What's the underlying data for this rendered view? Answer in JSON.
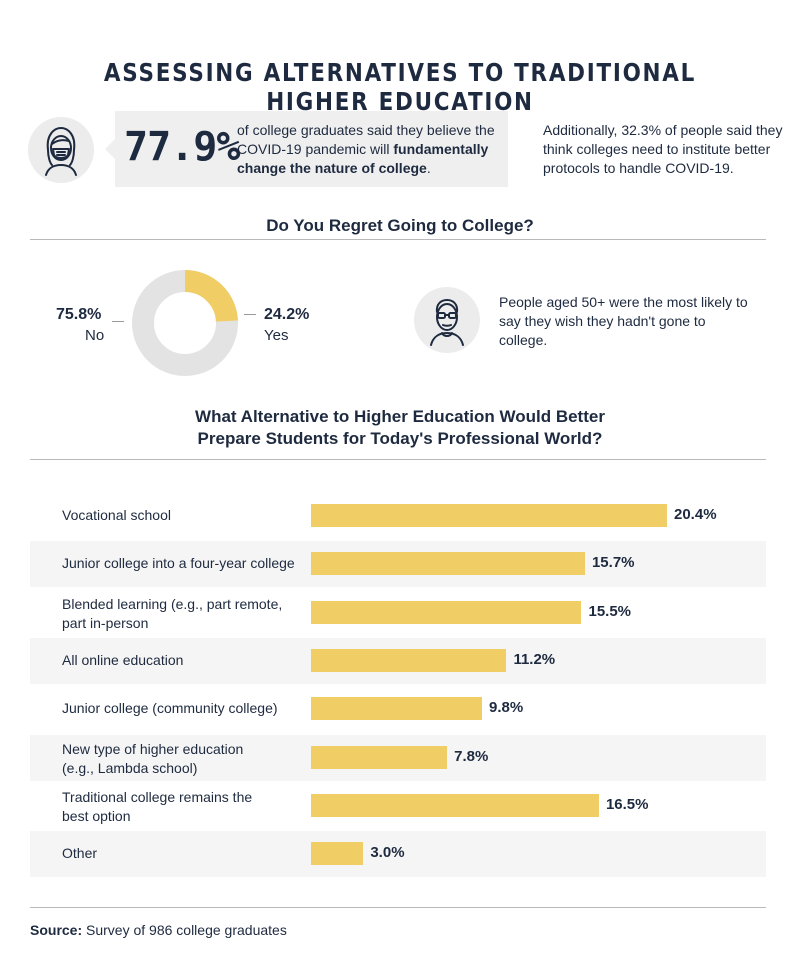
{
  "title": "ASSESSING ALTERNATIVES TO TRADITIONAL HIGHER EDUCATION",
  "callout": {
    "stat": "77.9%",
    "text_before": "of college graduates said they believe the COVID-19 pandemic will ",
    "text_bold": "fundamentally change the nature of college",
    "text_after": ".",
    "icon": "masked-woman-icon"
  },
  "side_note": "Additionally, 32.3% of people said they think colleges need to institute better protocols to handle COVID-19.",
  "regret": {
    "title": "Do You Regret Going to College?",
    "no_value": "75.8%",
    "no_label": "No",
    "yes_value": "24.2%",
    "yes_label": "Yes",
    "elder_note": "People aged 50+ were the most likely to say they wish they hadn't gone to college.",
    "icon": "older-man-glasses-icon"
  },
  "alternatives": {
    "title_line1": "What Alternative to Higher Education Would Better",
    "title_line2": "Prepare Students for Today's Professional World?"
  },
  "colors": {
    "navy": "#1e2a3f",
    "bar": "#f0cd65",
    "row_stripe": "#f5f5f5",
    "donut_rest": "#e3e3e3"
  },
  "chart_data": [
    {
      "type": "pie",
      "title": "Do You Regret Going to College?",
      "categories": [
        "No",
        "Yes"
      ],
      "values": [
        75.8,
        24.2
      ],
      "labels": [
        "75.8%",
        "24.2%"
      ],
      "colors": [
        "#e3e3e3",
        "#f0cd65"
      ]
    },
    {
      "type": "bar",
      "orientation": "horizontal",
      "title": "What Alternative to Higher Education Would Better Prepare Students for Today's Professional World?",
      "categories": [
        "Vocational school",
        "Junior college into a four-year college",
        "Blended learning (e.g., part remote, part in-person",
        "All online education",
        "Junior college (community college)",
        "New type of higher education (e.g., Lambda school)",
        "Traditional college remains the best option",
        "Other"
      ],
      "category_lines": [
        [
          "Vocational school"
        ],
        [
          "Junior college into a four-year college"
        ],
        [
          "Blended learning (e.g., part remote,",
          "part in-person"
        ],
        [
          "All online education"
        ],
        [
          "Junior college (community college)"
        ],
        [
          "New type of higher education",
          "(e.g., Lambda school)"
        ],
        [
          "Traditional college remains the",
          "best option"
        ],
        [
          "Other"
        ]
      ],
      "values": [
        20.4,
        15.7,
        15.5,
        11.2,
        9.8,
        7.8,
        16.5,
        3.0
      ],
      "labels": [
        "20.4%",
        "15.7%",
        "15.5%",
        "11.2%",
        "9.8%",
        "7.8%",
        "16.5%",
        "3.0%"
      ]
    }
  ],
  "source": {
    "label": "Source:",
    "text": " Survey of 986 college graduates"
  }
}
